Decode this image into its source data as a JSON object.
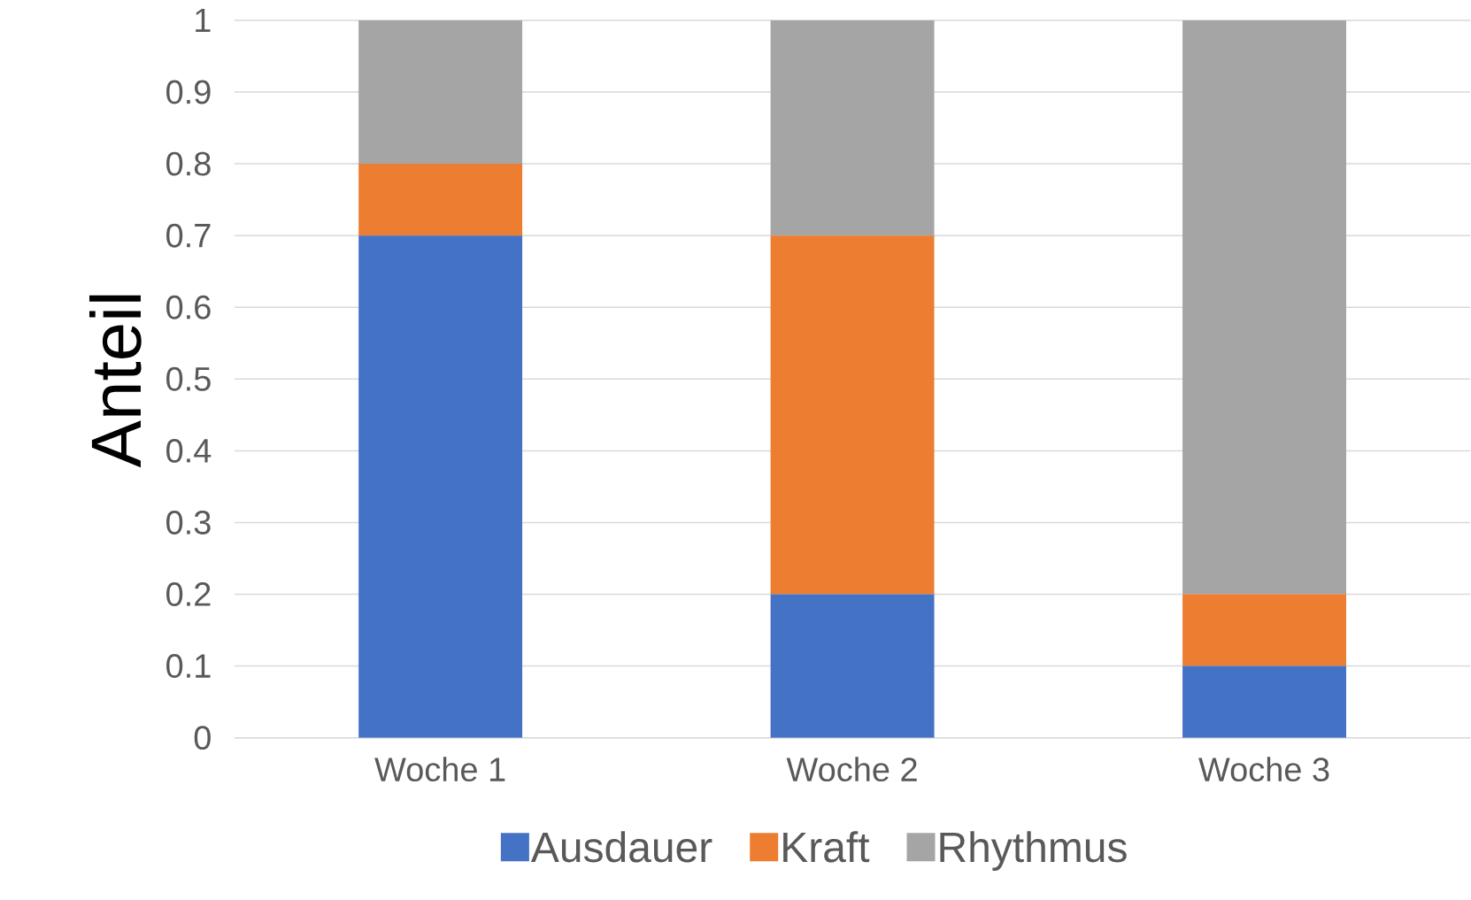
{
  "chart_data": {
    "type": "bar",
    "stacked": true,
    "ylabel": "Anteil",
    "categories": [
      "Woche 1",
      "Woche 2",
      "Woche 3"
    ],
    "series": [
      {
        "name": "Ausdauer",
        "color": "#4472c4",
        "values": [
          0.7,
          0.2,
          0.1
        ]
      },
      {
        "name": "Kraft",
        "color": "#ed7d31",
        "values": [
          0.1,
          0.5,
          0.1
        ]
      },
      {
        "name": "Rhythmus",
        "color": "#a5a5a5",
        "values": [
          0.2,
          0.3,
          0.8
        ]
      }
    ],
    "ylim": [
      0,
      1
    ],
    "yticks": [
      0,
      0.1,
      0.2,
      0.3,
      0.4,
      0.5,
      0.6,
      0.7,
      0.8,
      0.9,
      1
    ],
    "grid": "y",
    "legend": "bottom"
  }
}
